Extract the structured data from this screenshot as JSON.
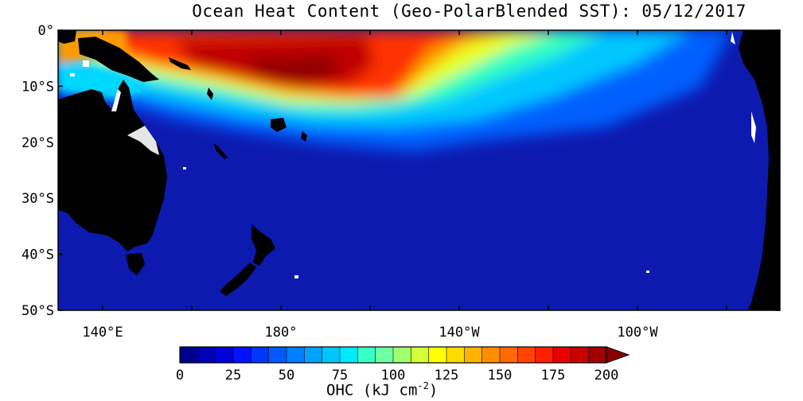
{
  "title": "Ocean Heat Content (Geo-PolarBlended SST): 05/12/2017",
  "map": {
    "lon_ticks": [
      "140°E",
      "180°",
      "140°W",
      "100°W"
    ],
    "lat_ticks": [
      "0°",
      "10°S",
      "20°S",
      "30°S",
      "40°S",
      "50°S"
    ],
    "colors": {
      "land": "#000000",
      "cold": "#0d1ab0",
      "coast": "#ffffff"
    }
  },
  "colorbar": {
    "label_main": "OHC (kJ cm",
    "label_sup": "-2",
    "label_end": ")",
    "ticks": [
      "0",
      "25",
      "50",
      "75",
      "100",
      "125",
      "150",
      "175",
      "200"
    ],
    "palette": [
      "#00008f",
      "#0000b4",
      "#0000d8",
      "#0012ff",
      "#0036ff",
      "#005aff",
      "#007eff",
      "#00a2ff",
      "#00c6ff",
      "#00eaff",
      "#36ffc8",
      "#6effa0",
      "#a0ff6e",
      "#d2ff36",
      "#ffff00",
      "#ffda00",
      "#ffb400",
      "#ff8e00",
      "#ff6a00",
      "#ff4400",
      "#ff2000",
      "#e80000",
      "#c80000",
      "#a00000"
    ]
  }
}
